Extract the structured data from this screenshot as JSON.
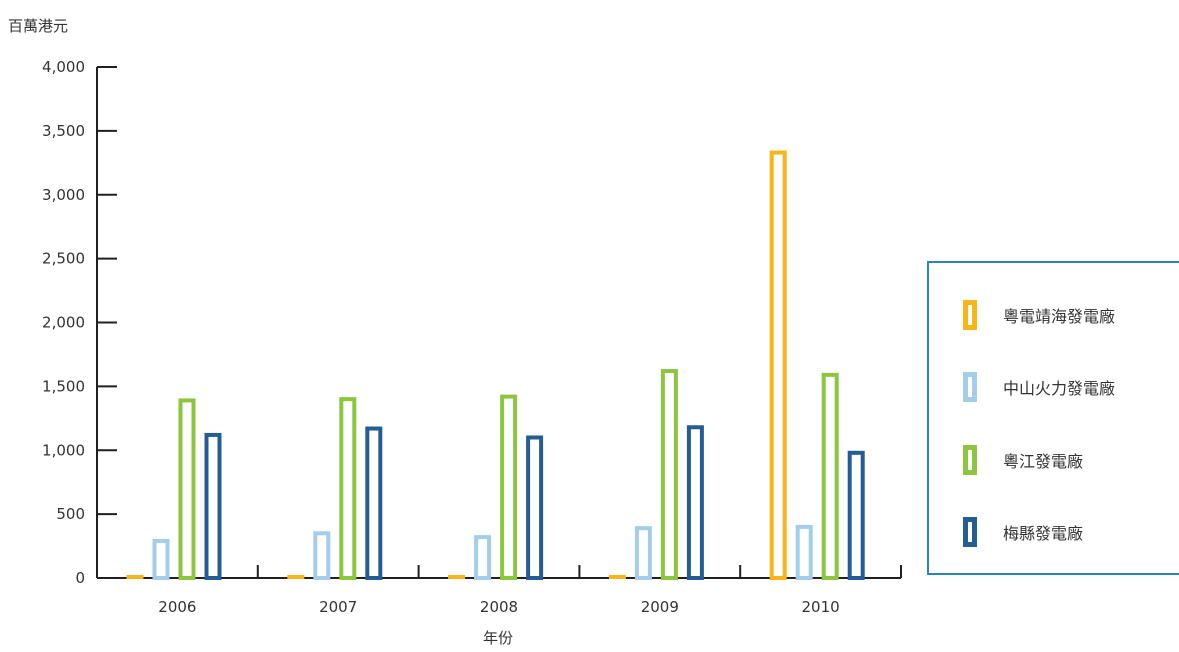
{
  "chart_data": {
    "type": "bar",
    "ylabel": "百萬港元",
    "xlabel": "年份",
    "ylim": [
      0,
      4000
    ],
    "yticks": [
      "0",
      "500",
      "1,000",
      "1,500",
      "2,000",
      "2,500",
      "3,000",
      "3,500",
      "4,000"
    ],
    "categories": [
      "2006",
      "2007",
      "2008",
      "2009",
      "2010"
    ],
    "legend_position": "right",
    "grid": false,
    "series": [
      {
        "name": "粵電靖海發電廠",
        "color": "#f9b418",
        "values": [
          0,
          0,
          0,
          0,
          3330
        ]
      },
      {
        "name": "中山火力發電廠",
        "color": "#a3cdea",
        "values": [
          290,
          350,
          320,
          390,
          400
        ]
      },
      {
        "name": "粵江發電廠",
        "color": "#8cc63f",
        "values": [
          1390,
          1400,
          1420,
          1620,
          1590
        ]
      },
      {
        "name": "梅縣發電廠",
        "color": "#245c94",
        "values": [
          1120,
          1170,
          1100,
          1180,
          980
        ]
      }
    ]
  }
}
